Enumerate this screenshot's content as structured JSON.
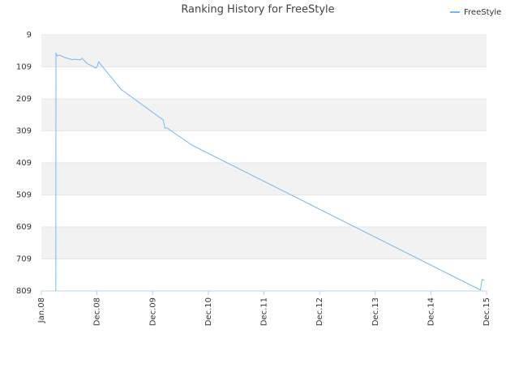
{
  "chart_data": {
    "type": "line",
    "title": "Ranking History for FreeStyle",
    "xlim": [
      0,
      8
    ],
    "xticks": [
      {
        "value": 0,
        "label": "Jan.08"
      },
      {
        "value": 1,
        "label": "Dec.08"
      },
      {
        "value": 2,
        "label": "Dec.09"
      },
      {
        "value": 3,
        "label": "Dec.10"
      },
      {
        "value": 4,
        "label": "Dec.11"
      },
      {
        "value": 5,
        "label": "Dec.12"
      },
      {
        "value": 6,
        "label": "Dec.13"
      },
      {
        "value": 7,
        "label": "Dec.14"
      },
      {
        "value": 8,
        "label": "Dec.15"
      }
    ],
    "ylim": [
      9,
      809
    ],
    "yticks": [
      9,
      109,
      209,
      309,
      409,
      509,
      609,
      709,
      809
    ],
    "y_reversed": true,
    "legend": "top-right",
    "grid": true,
    "x": [
      0.26,
      0.262,
      0.29,
      0.33,
      0.42,
      0.57,
      0.59,
      0.7,
      0.73,
      0.82,
      0.9,
      0.98,
      1.0,
      1.03,
      1.06,
      1.44,
      1.47,
      2.19,
      2.22,
      2.26,
      2.7,
      7.89,
      7.92,
      7.96
    ],
    "series": [
      {
        "name": "FreeStyle",
        "color": "#7cb5ec",
        "values": [
          809,
          67,
          75,
          72,
          80,
          87,
          85,
          87,
          82,
          98,
          105,
          113,
          110,
          93,
          100,
          181,
          184,
          275,
          300,
          300,
          353,
          806,
          773,
          776
        ]
      }
    ]
  }
}
